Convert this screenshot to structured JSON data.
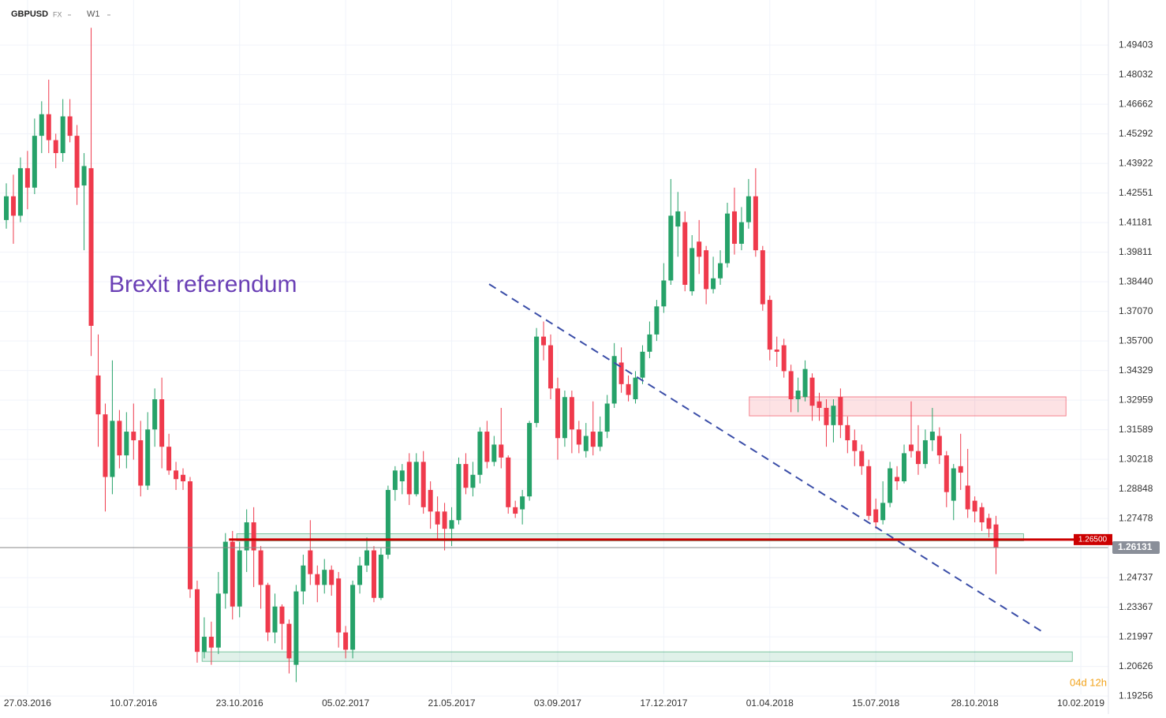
{
  "chart_data": {
    "type": "candlestick",
    "symbol": "GBPUSD",
    "market": "FX",
    "interval": "W1",
    "annotation": "Brexit referendum",
    "timer": "04d 12h",
    "up_color": "#26a269",
    "down_color": "#ef3a4c",
    "xlim": [
      -0.893,
      155.9
    ],
    "xticks": [
      {
        "value": 3,
        "label": "27.03.2016"
      },
      {
        "value": 18,
        "label": "10.07.2016"
      },
      {
        "value": 33,
        "label": "23.10.2016"
      },
      {
        "value": 48,
        "label": "05.02.2017"
      },
      {
        "value": 63,
        "label": "21.05.2017"
      },
      {
        "value": 78,
        "label": "03.09.2017"
      },
      {
        "value": 93,
        "label": "17.12.2017"
      },
      {
        "value": 108,
        "label": "01.04.2018"
      },
      {
        "value": 123,
        "label": "15.07.2018"
      },
      {
        "value": 137,
        "label": "28.10.2018"
      },
      {
        "value": 152,
        "label": "10.02.2019"
      }
    ],
    "ylim": [
      1.1842,
      1.5149
    ],
    "yticks": [
      1.49403,
      1.48032,
      1.46662,
      1.45292,
      1.43922,
      1.42551,
      1.41181,
      1.39811,
      {
        "value": 1.3844,
        "label": "1.38440"
      },
      {
        "value": 1.3707,
        "label": "1.37070"
      },
      {
        "value": 1.357,
        "label": "1.35700"
      },
      1.34329,
      1.32959,
      1.31589,
      1.30218,
      1.28848,
      1.27478,
      1.24737,
      1.23367,
      1.21997,
      1.20626,
      1.19256
    ],
    "grid": true,
    "open": [
      1.413,
      1.424,
      1.415,
      1.437,
      1.428,
      1.452,
      1.462,
      1.45,
      1.444,
      1.461,
      1.452,
      1.429,
      1.437,
      1.341,
      1.323,
      1.294,
      1.32,
      1.304,
      1.315,
      1.311,
      1.29,
      1.316,
      1.33,
      1.308,
      1.297,
      1.295,
      1.292,
      1.242,
      1.213,
      1.22,
      1.215,
      1.24,
      1.264,
      1.234,
      1.26,
      1.273,
      1.26,
      1.244,
      1.222,
      1.234,
      1.226,
      1.207,
      1.241,
      1.26,
      1.249,
      1.244,
      1.251,
      1.247,
      1.222,
      1.214,
      1.244,
      1.253,
      1.26,
      1.238,
      1.258,
      1.288,
      1.292,
      1.301,
      1.286,
      1.301,
      1.288,
      1.278,
      1.278,
      1.27,
      1.274,
      1.3,
      1.289,
      1.295,
      1.315,
      1.301,
      1.309,
      1.303,
      1.28,
      1.279,
      1.285,
      1.319,
      1.359,
      1.355,
      1.335,
      1.312,
      1.331,
      1.316,
      1.306,
      1.315,
      1.308,
      1.315,
      1.328,
      1.347,
      1.337,
      1.33,
      1.34,
      1.352,
      1.36,
      1.373,
      1.385,
      1.41,
      1.412,
      1.38,
      1.403,
      1.399,
      1.381,
      1.386,
      1.393,
      1.417,
      1.402,
      1.412,
      1.424,
      1.399,
      1.376,
      1.353,
      1.355,
      1.343,
      1.33,
      1.331,
      1.34,
      1.329,
      1.326,
      1.318,
      1.331,
      1.318,
      1.311,
      1.306,
      1.299,
      1.279,
      1.274,
      1.282,
      1.294,
      1.292,
      1.309,
      1.306,
      1.3,
      1.311,
      1.313,
      1.304,
      1.283,
      1.299,
      1.29,
      1.283,
      1.28,
      1.275,
      1.272
    ],
    "high": [
      1.43,
      1.434,
      1.442,
      1.445,
      1.46,
      1.468,
      1.478,
      1.453,
      1.469,
      1.469,
      1.457,
      1.444,
      1.502,
      1.36,
      1.328,
      1.348,
      1.325,
      1.324,
      1.328,
      1.32,
      1.324,
      1.335,
      1.34,
      1.314,
      1.301,
      1.298,
      1.294,
      1.246,
      1.229,
      1.227,
      1.25,
      1.268,
      1.269,
      1.264,
      1.279,
      1.28,
      1.262,
      1.245,
      1.24,
      1.235,
      1.228,
      1.244,
      1.258,
      1.274,
      1.253,
      1.256,
      1.253,
      1.25,
      1.225,
      1.246,
      1.257,
      1.266,
      1.262,
      1.261,
      1.29,
      1.299,
      1.3,
      1.305,
      1.305,
      1.306,
      1.292,
      1.285,
      1.282,
      1.28,
      1.303,
      1.305,
      1.301,
      1.317,
      1.32,
      1.313,
      1.326,
      1.304,
      1.283,
      1.288,
      1.32,
      1.363,
      1.366,
      1.36,
      1.34,
      1.334,
      1.334,
      1.32,
      1.319,
      1.329,
      1.322,
      1.332,
      1.356,
      1.354,
      1.341,
      1.343,
      1.355,
      1.366,
      1.376,
      1.393,
      1.432,
      1.426,
      1.417,
      1.406,
      1.413,
      1.401,
      1.396,
      1.399,
      1.421,
      1.428,
      1.419,
      1.432,
      1.437,
      1.401,
      1.378,
      1.359,
      1.358,
      1.346,
      1.34,
      1.348,
      1.342,
      1.333,
      1.33,
      1.33,
      1.335,
      1.322,
      1.316,
      1.309,
      1.302,
      1.284,
      1.292,
      1.301,
      1.299,
      1.309,
      1.329,
      1.318,
      1.316,
      1.326,
      1.317,
      1.306,
      1.3,
      1.314,
      1.307,
      1.285,
      1.282,
      1.277,
      1.276
    ],
    "low": [
      1.409,
      1.402,
      1.412,
      1.418,
      1.425,
      1.444,
      1.444,
      1.437,
      1.44,
      1.449,
      1.42,
      1.399,
      1.35,
      1.308,
      1.278,
      1.286,
      1.298,
      1.298,
      1.302,
      1.285,
      1.288,
      1.308,
      1.298,
      1.295,
      1.288,
      1.288,
      1.238,
      1.208,
      1.21,
      1.207,
      1.212,
      1.233,
      1.228,
      1.229,
      1.25,
      1.243,
      1.233,
      1.218,
      1.217,
      1.214,
      1.203,
      1.199,
      1.235,
      1.244,
      1.236,
      1.24,
      1.239,
      1.215,
      1.21,
      1.21,
      1.24,
      1.25,
      1.236,
      1.237,
      1.256,
      1.283,
      1.286,
      1.281,
      1.285,
      1.277,
      1.27,
      1.265,
      1.26,
      1.262,
      1.272,
      1.286,
      1.285,
      1.291,
      1.298,
      1.299,
      1.298,
      1.277,
      1.275,
      1.272,
      1.283,
      1.317,
      1.348,
      1.33,
      1.302,
      1.308,
      1.305,
      1.305,
      1.303,
      1.304,
      1.306,
      1.312,
      1.326,
      1.333,
      1.329,
      1.328,
      1.337,
      1.349,
      1.357,
      1.37,
      1.383,
      1.396,
      1.38,
      1.378,
      1.388,
      1.374,
      1.379,
      1.383,
      1.391,
      1.397,
      1.399,
      1.409,
      1.396,
      1.371,
      1.348,
      1.345,
      1.34,
      1.324,
      1.324,
      1.329,
      1.32,
      1.32,
      1.308,
      1.31,
      1.312,
      1.305,
      1.299,
      1.295,
      1.274,
      1.27,
      1.272,
      1.28,
      1.288,
      1.291,
      1.303,
      1.295,
      1.298,
      1.306,
      1.3,
      1.28,
      1.274,
      1.288,
      1.275,
      1.273,
      1.269,
      1.266,
      1.249
    ],
    "close": [
      1.424,
      1.415,
      1.437,
      1.428,
      1.452,
      1.462,
      1.45,
      1.444,
      1.461,
      1.452,
      1.428,
      1.438,
      1.364,
      1.323,
      1.294,
      1.32,
      1.304,
      1.315,
      1.311,
      1.29,
      1.316,
      1.33,
      1.308,
      1.297,
      1.293,
      1.292,
      1.242,
      1.213,
      1.22,
      1.215,
      1.24,
      1.264,
      1.234,
      1.26,
      1.273,
      1.26,
      1.244,
      1.222,
      1.234,
      1.226,
      1.21,
      1.241,
      1.253,
      1.249,
      1.244,
      1.251,
      1.244,
      1.222,
      1.214,
      1.244,
      1.253,
      1.26,
      1.238,
      1.258,
      1.288,
      1.297,
      1.297,
      1.286,
      1.301,
      1.28,
      1.278,
      1.272,
      1.27,
      1.274,
      1.3,
      1.289,
      1.295,
      1.315,
      1.301,
      1.309,
      1.303,
      1.28,
      1.277,
      1.285,
      1.319,
      1.359,
      1.355,
      1.335,
      1.312,
      1.331,
      1.316,
      1.309,
      1.313,
      1.308,
      1.315,
      1.328,
      1.35,
      1.337,
      1.332,
      1.34,
      1.352,
      1.36,
      1.373,
      1.385,
      1.415,
      1.417,
      1.383,
      1.4,
      1.396,
      1.381,
      1.386,
      1.393,
      1.416,
      1.402,
      1.412,
      1.424,
      1.399,
      1.374,
      1.353,
      1.352,
      1.343,
      1.33,
      1.334,
      1.344,
      1.327,
      1.326,
      1.318,
      1.327,
      1.318,
      1.311,
      1.306,
      1.299,
      1.276,
      1.273,
      1.282,
      1.298,
      1.292,
      1.305,
      1.306,
      1.3,
      1.311,
      1.315,
      1.304,
      1.287,
      1.298,
      1.296,
      1.279,
      1.278,
      1.273,
      1.27,
      1.2613
    ],
    "zones": [
      {
        "top": 1.2677,
        "bottom": 1.2644,
        "start": 32.6,
        "end": 143.9,
        "color": "#2ea36a"
      },
      {
        "top": 1.3311,
        "bottom": 1.3223,
        "start": 105.1,
        "end": 149.9,
        "color": "#ef3a4c"
      },
      {
        "top": 1.213,
        "bottom": 1.2086,
        "start": 27.7,
        "end": 150.8,
        "color": "#2ea36a"
      }
    ],
    "trendline": {
      "points": [
        [
          68.3,
          1.3833
        ],
        [
          147,
          1.2214
        ]
      ],
      "color": "#3b4ea8"
    },
    "level": {
      "value": 1.265,
      "label": "1.26500",
      "start": 31.5,
      "color": "#cc0000"
    },
    "last_price": 1.26131
  }
}
